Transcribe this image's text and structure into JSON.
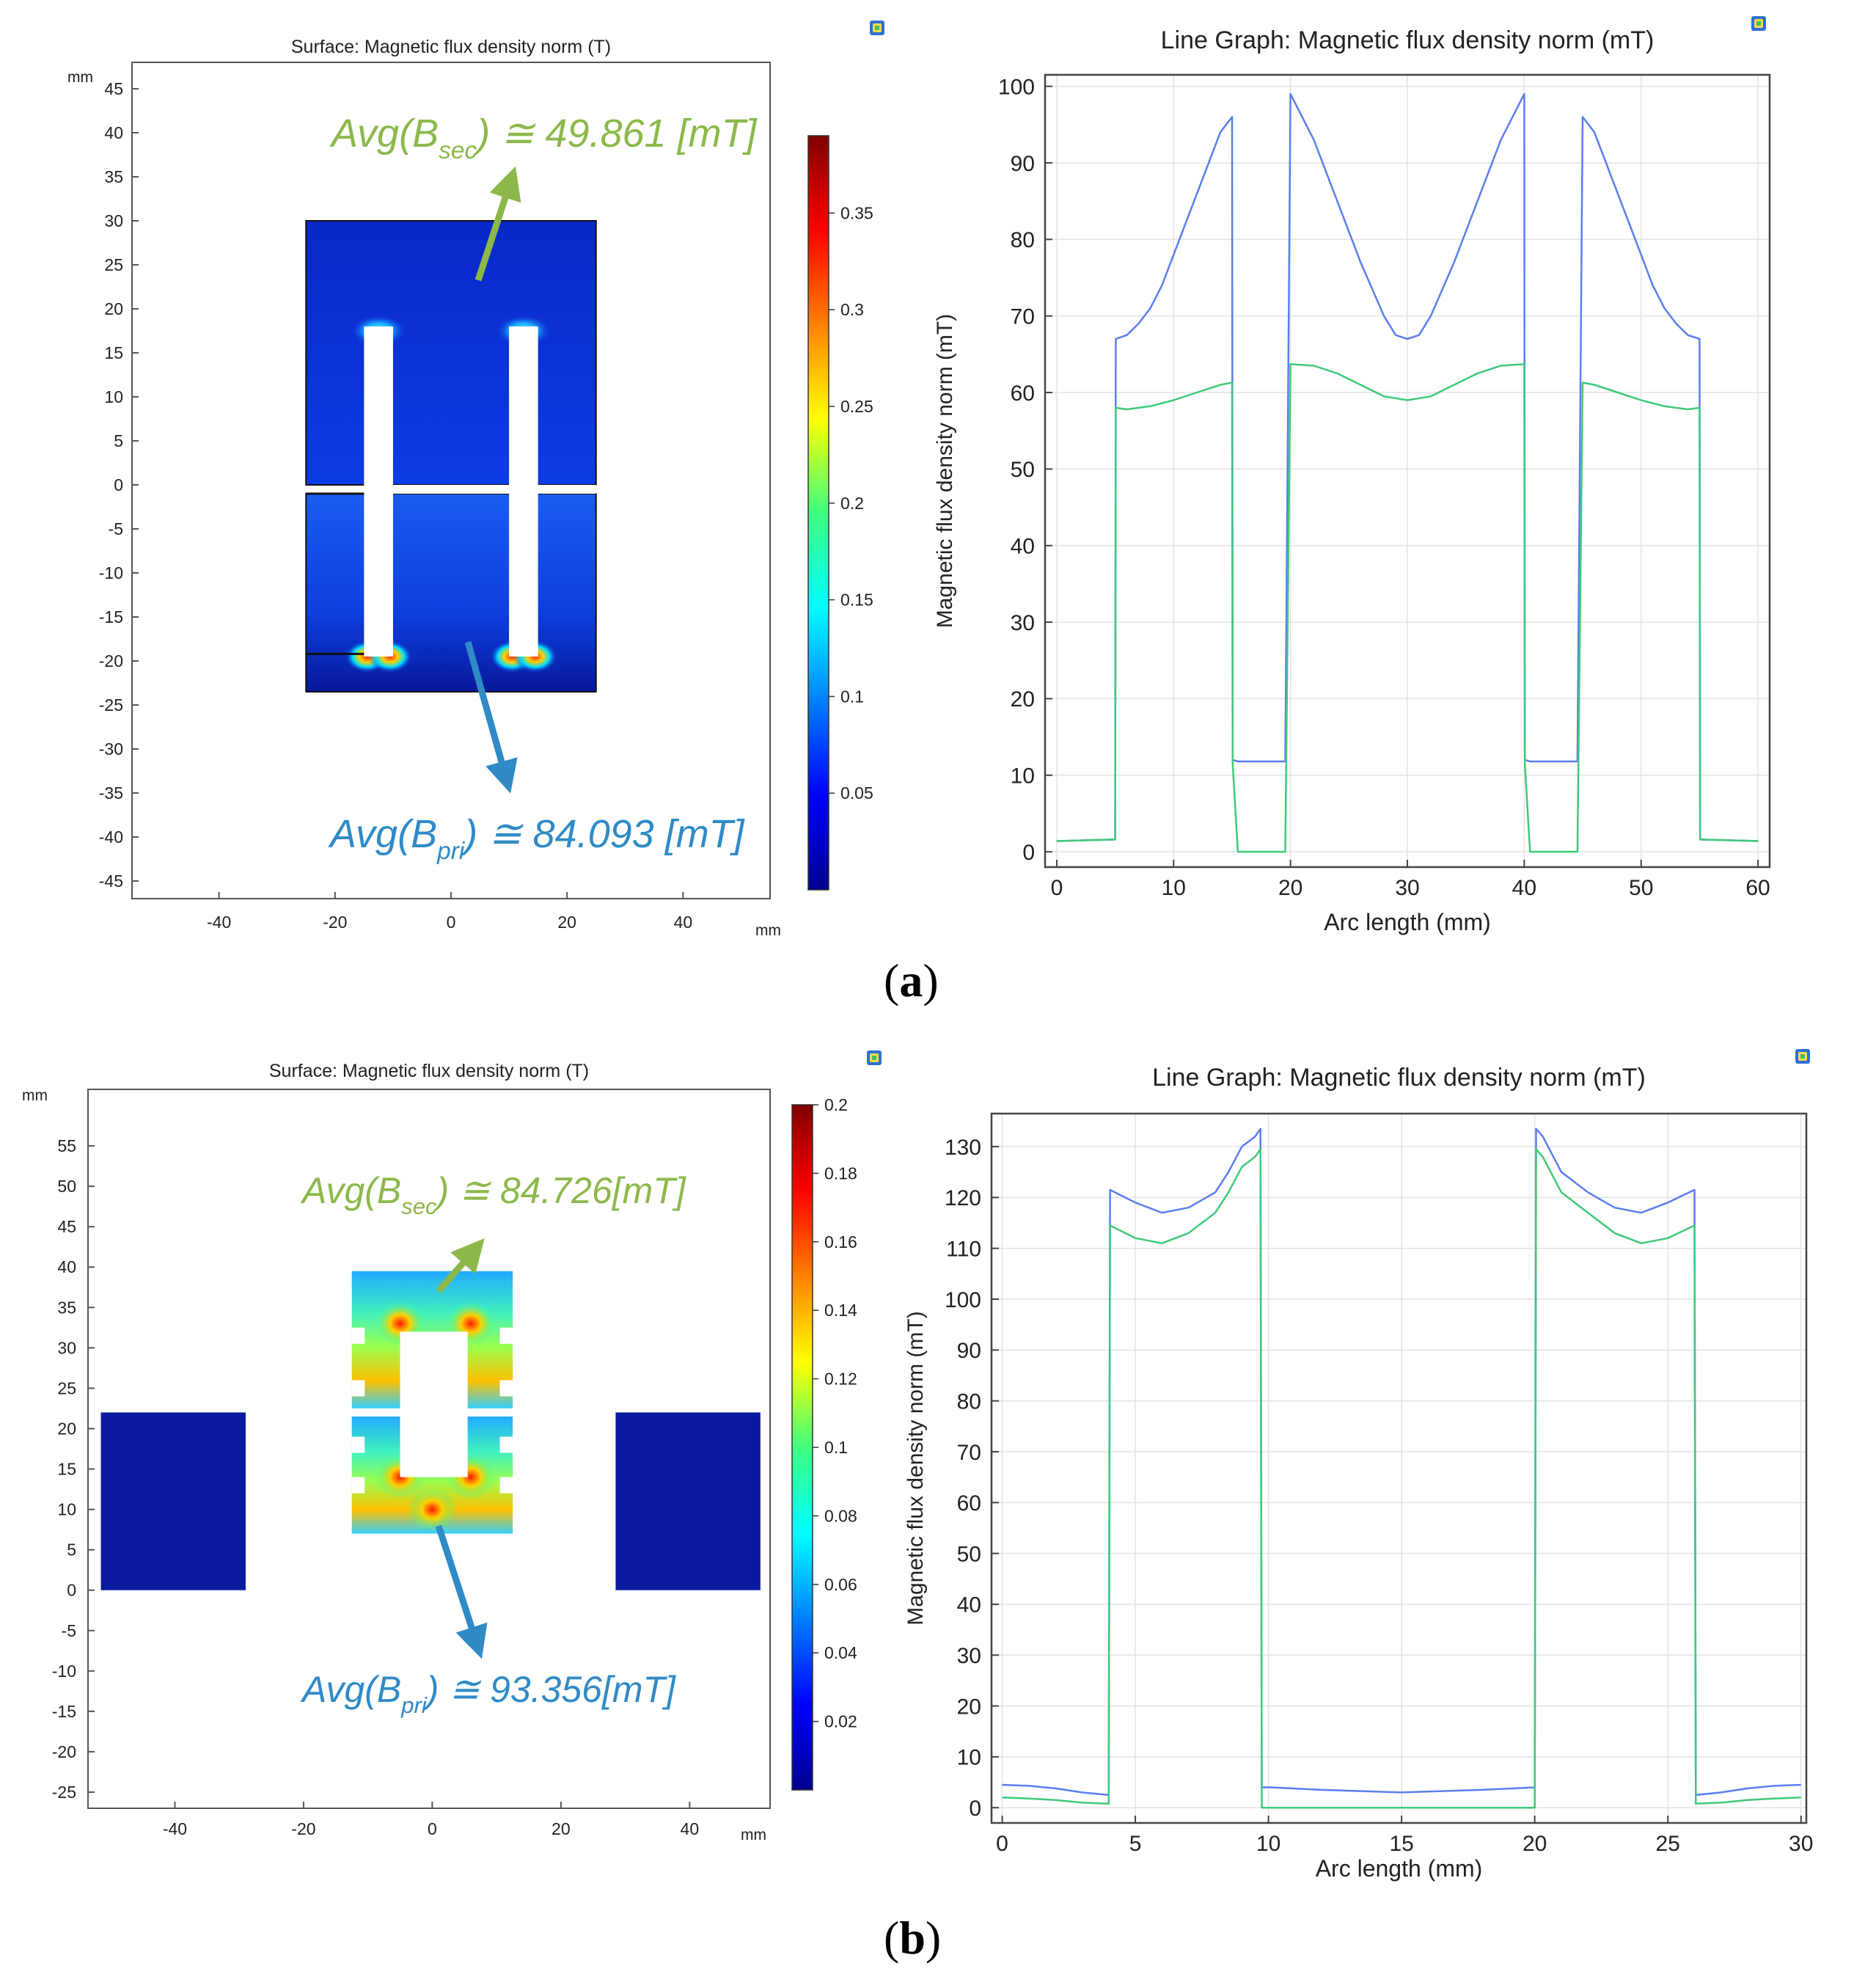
{
  "panel_labels": {
    "a": "a",
    "b": "b"
  },
  "icon_name": "comsol-plot-icon",
  "colors": {
    "blue_series": "#5a7ef0",
    "green_series": "#3ec97a",
    "annot_green": "#8cb84a",
    "annot_blue": "#2f8ac6",
    "core_blue": "#0b2fd6",
    "deep_blue": "#0a1a9e"
  },
  "chart_data": [
    {
      "id": "a_surface",
      "type": "heatmap",
      "title": "Surface: Magnetic flux density norm (T)",
      "x_unit": "mm",
      "y_unit": "mm",
      "xlim": [
        -55,
        55
      ],
      "ylim": [
        -47,
        48
      ],
      "x_ticks": [
        -40,
        -20,
        0,
        20,
        40
      ],
      "y_ticks": [
        45,
        40,
        35,
        30,
        25,
        20,
        15,
        10,
        5,
        0,
        -5,
        -10,
        -15,
        -20,
        -25,
        -30,
        -35,
        -40,
        -45
      ],
      "colorbar": {
        "min": 0,
        "max": 0.39,
        "ticks": [
          0.35,
          0.3,
          0.25,
          0.2,
          0.15,
          0.1,
          0.05
        ]
      },
      "annotations": [
        {
          "label": "Avg(B_sec) ≅ 49.861 [mT]",
          "prefix": "Avg",
          "symbol": "B",
          "sub": "sec",
          "value": "≅ 49.861 [mT]"
        },
        {
          "label": "Avg(B_pri) ≅ 84.093 [mT]",
          "prefix": "Avg",
          "symbol": "B",
          "sub": "pri",
          "value": "≅ 84.093 [mT]"
        }
      ]
    },
    {
      "id": "a_line",
      "type": "line",
      "title": "Line Graph: Magnetic flux density norm (mT)",
      "xlabel": "Arc length (mm)",
      "ylabel": "Magnetic flux density norm (mT)",
      "xlim": [
        -1,
        61
      ],
      "ylim": [
        -2,
        101.5
      ],
      "x_ticks": [
        0,
        10,
        20,
        30,
        40,
        50,
        60
      ],
      "y_ticks": [
        0,
        10,
        20,
        30,
        40,
        50,
        60,
        70,
        80,
        90,
        100
      ],
      "series": [
        {
          "name": "blue",
          "x": [
            0,
            5,
            5.05,
            6,
            7,
            8,
            9,
            10,
            11,
            12,
            13,
            14,
            15,
            15.05,
            15.5,
            19.5,
            19.55,
            20,
            22,
            24,
            26,
            28,
            29,
            30,
            31,
            32,
            34,
            36,
            38,
            40,
            40.05,
            40.5,
            44.5,
            44.55,
            45,
            46,
            47,
            48,
            49,
            50,
            51,
            52,
            53,
            54,
            55,
            55.05,
            60
          ],
          "y": [
            1.4,
            1.6,
            67,
            67.5,
            69,
            71,
            74,
            78,
            82,
            86,
            90,
            94,
            96,
            12,
            11.8,
            11.8,
            12,
            99,
            93,
            85,
            77,
            70,
            67.5,
            67,
            67.5,
            70,
            77,
            85,
            93,
            99,
            12,
            11.8,
            11.8,
            12,
            96,
            94,
            90,
            86,
            82,
            78,
            74,
            71,
            69,
            67.5,
            67,
            1.6,
            1.4
          ]
        },
        {
          "name": "green",
          "x": [
            0,
            5,
            5.05,
            6,
            8,
            10,
            12,
            14,
            15,
            15.05,
            15.5,
            19.5,
            19.55,
            20,
            22,
            24,
            26,
            28,
            30,
            32,
            34,
            36,
            38,
            40,
            40.05,
            40.5,
            44.5,
            44.55,
            45,
            46,
            48,
            50,
            52,
            54,
            55,
            55.05,
            60
          ],
          "y": [
            1.4,
            1.6,
            58,
            57.8,
            58.2,
            59,
            60,
            61,
            61.3,
            11.5,
            0,
            0,
            0,
            63.7,
            63.5,
            62.5,
            61,
            59.5,
            59,
            59.5,
            61,
            62.5,
            63.5,
            63.7,
            11.5,
            0,
            0,
            0,
            61.3,
            61,
            60,
            59,
            58.2,
            57.8,
            58,
            1.6,
            1.4
          ]
        }
      ]
    },
    {
      "id": "b_surface",
      "type": "heatmap",
      "title": "Surface: Magnetic flux density norm (T)",
      "x_unit": "mm",
      "y_unit": "mm",
      "xlim": [
        -53.5,
        52.5
      ],
      "ylim": [
        -27,
        62
      ],
      "x_ticks": [
        -40,
        -20,
        0,
        20,
        40
      ],
      "y_ticks": [
        55,
        50,
        45,
        40,
        35,
        30,
        25,
        20,
        15,
        10,
        5,
        0,
        -5,
        -10,
        -15,
        -20,
        -25
      ],
      "colorbar": {
        "min": 0,
        "max": 0.2,
        "ticks": [
          0.2,
          0.18,
          0.16,
          0.14,
          0.12,
          0.1,
          0.08,
          0.06,
          0.04,
          0.02
        ]
      },
      "annotations": [
        {
          "label": "Avg(B_sec) ≅ 84.726[mT]",
          "prefix": "Avg",
          "symbol": "B",
          "sub": "sec",
          "value": "≅ 84.726[mT]"
        },
        {
          "label": "Avg(B_pri) ≅ 93.356[mT]",
          "prefix": "Avg",
          "symbol": "B",
          "sub": "pri",
          "value": "≅ 93.356[mT]"
        }
      ]
    },
    {
      "id": "b_line",
      "type": "line",
      "title": "Line Graph: Magnetic flux density norm (mT)",
      "xlabel": "Arc length (mm)",
      "ylabel": "Magnetic flux density norm (mT)",
      "xlim": [
        -0.4,
        30.2
      ],
      "ylim": [
        -3,
        136.5
      ],
      "x_ticks": [
        0,
        5,
        10,
        15,
        20,
        25,
        30
      ],
      "y_ticks": [
        0,
        10,
        20,
        30,
        40,
        50,
        60,
        70,
        80,
        90,
        100,
        110,
        120,
        130
      ],
      "series": [
        {
          "name": "blue",
          "x": [
            0,
            1,
            2,
            3,
            4,
            4.05,
            5,
            6,
            7,
            8,
            8.5,
            9,
            9.5,
            9.7,
            9.75,
            10.1,
            12,
            15,
            18,
            20,
            20.05,
            20.3,
            21,
            22,
            23,
            24,
            25,
            26,
            26.05,
            27,
            28,
            29,
            30
          ],
          "y": [
            4.5,
            4.3,
            3.8,
            3,
            2.5,
            121.5,
            119,
            117,
            118,
            121,
            125,
            130,
            132,
            133.5,
            4,
            4,
            3.5,
            3,
            3.5,
            4,
            133.5,
            132,
            125,
            121,
            118,
            117,
            119,
            121.5,
            2.5,
            3,
            3.8,
            4.3,
            4.5
          ]
        },
        {
          "name": "green",
          "x": [
            0,
            1,
            2,
            3,
            4,
            4.05,
            5,
            6,
            7,
            8,
            8.5,
            9,
            9.5,
            9.7,
            9.75,
            10.1,
            15,
            20,
            20.05,
            20.3,
            21,
            22,
            23,
            24,
            25,
            26,
            26.05,
            27,
            28,
            29,
            30
          ],
          "y": [
            2,
            1.8,
            1.5,
            1,
            0.8,
            114.5,
            112,
            111,
            113,
            117,
            121,
            126,
            128,
            129.5,
            0,
            0,
            0,
            0,
            129.5,
            128,
            121,
            117,
            113,
            111,
            112,
            114.5,
            0.8,
            1,
            1.5,
            1.8,
            2
          ]
        }
      ]
    }
  ]
}
